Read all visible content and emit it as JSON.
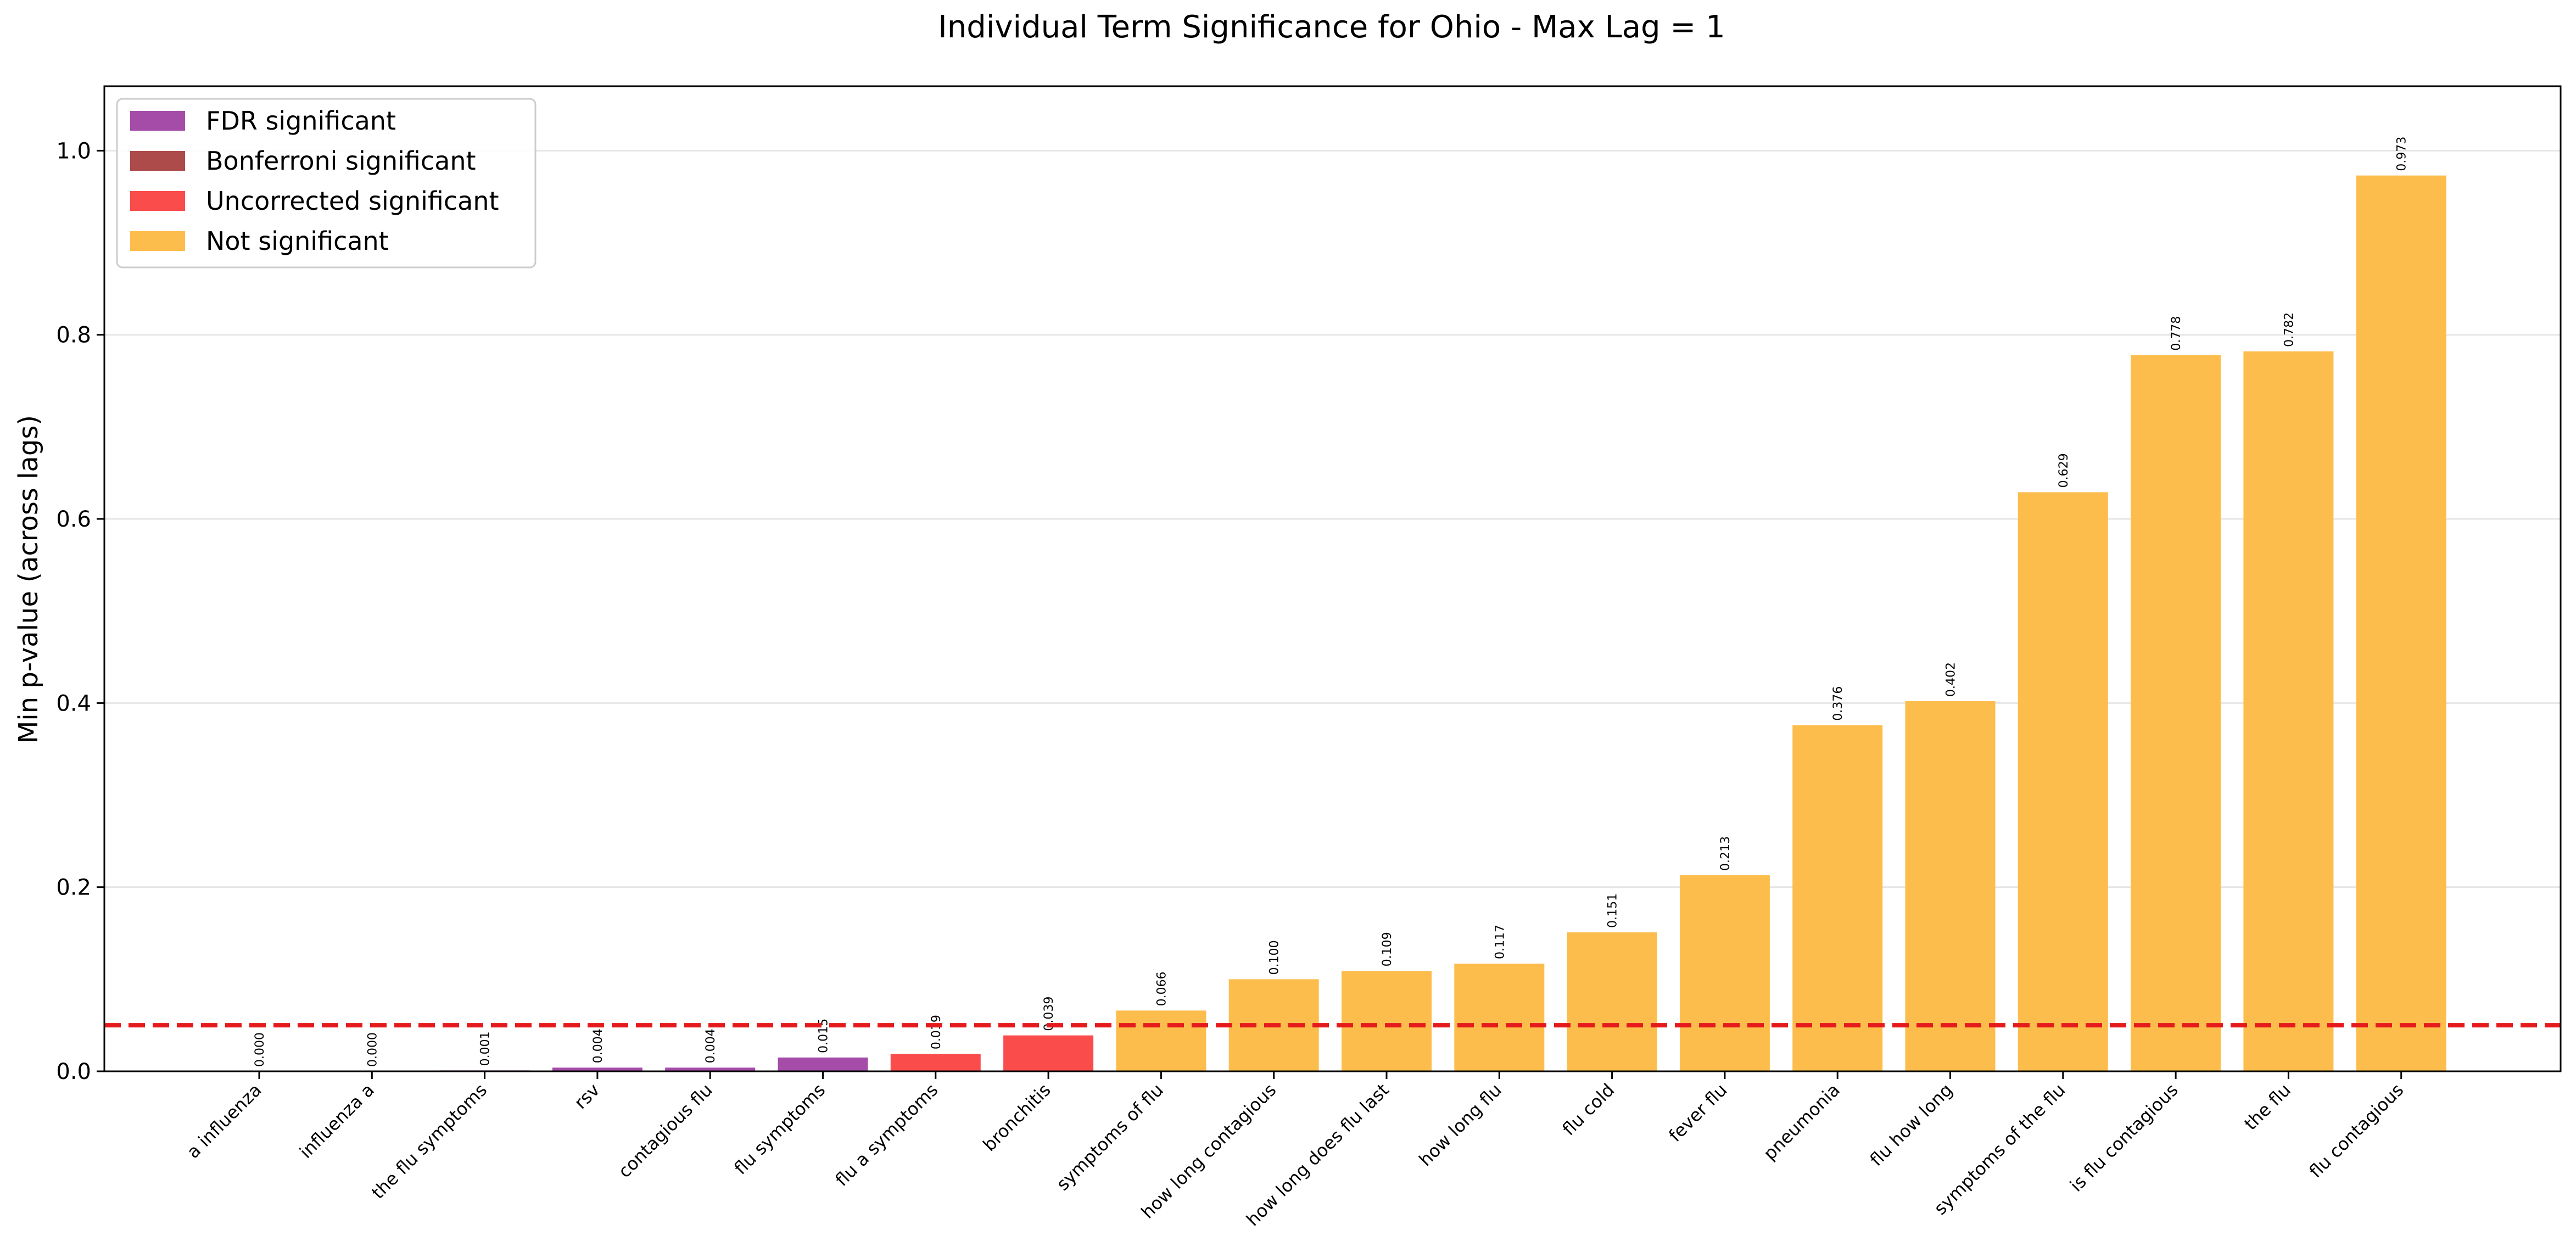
{
  "chart_data": {
    "type": "bar",
    "title": "Individual Term Significance for Ohio - Max Lag = 1",
    "xlabel": "",
    "ylabel": "Min p-value (across lags)",
    "ylim": [
      0,
      1.07
    ],
    "yticks": [
      0.0,
      0.2,
      0.4,
      0.6,
      0.8,
      1.0
    ],
    "ytick_labels": [
      "0.0",
      "0.2",
      "0.4",
      "0.6",
      "0.8",
      "1.0"
    ],
    "grid": "horizontal",
    "threshold": {
      "value": 0.05,
      "color": "#e41a1c",
      "style": "dashed"
    },
    "legend": {
      "position": "top-left",
      "entries": [
        {
          "label": "FDR significant",
          "color": "#a54ca8"
        },
        {
          "label": "Bonferroni significant",
          "color": "#ad4a4a"
        },
        {
          "label": "Uncorrected significant",
          "color": "#fb4c4c"
        },
        {
          "label": "Not significant",
          "color": "#fdbd4c"
        }
      ]
    },
    "categories": [
      "a influenza",
      "influenza a",
      "the flu symptoms",
      "rsv",
      "contagious flu",
      "flu symptoms",
      "flu a symptoms",
      "bronchitis",
      "symptoms of flu",
      "how long contagious",
      "how long does flu last",
      "how long flu",
      "flu cold",
      "fever flu",
      "pneumonia",
      "flu how long",
      "symptoms of the flu",
      "is flu contagious",
      "the flu",
      "flu contagious"
    ],
    "values": [
      0.0,
      0.0,
      0.001,
      0.004,
      0.004,
      0.015,
      0.019,
      0.039,
      0.066,
      0.1,
      0.109,
      0.117,
      0.151,
      0.213,
      0.376,
      0.402,
      0.629,
      0.778,
      0.782,
      0.973
    ],
    "value_labels": [
      "0.000",
      "0.000",
      "0.001",
      "0.004",
      "0.004",
      "0.015",
      "0.019",
      "0.039",
      "0.066",
      "0.100",
      "0.109",
      "0.117",
      "0.151",
      "0.213",
      "0.376",
      "0.402",
      "0.629",
      "0.778",
      "0.782",
      "0.973"
    ],
    "significance": [
      "FDR significant",
      "FDR significant",
      "FDR significant",
      "FDR significant",
      "FDR significant",
      "FDR significant",
      "Uncorrected significant",
      "Uncorrected significant",
      "Not significant",
      "Not significant",
      "Not significant",
      "Not significant",
      "Not significant",
      "Not significant",
      "Not significant",
      "Not significant",
      "Not significant",
      "Not significant",
      "Not significant",
      "Not significant"
    ]
  }
}
